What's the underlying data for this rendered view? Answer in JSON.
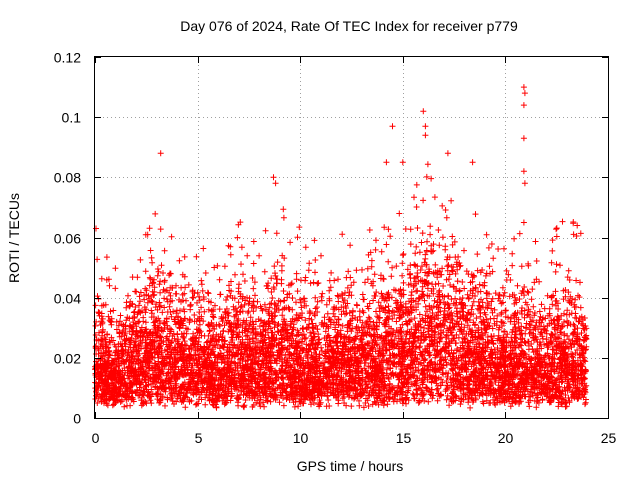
{
  "chart_data": {
    "type": "scatter",
    "title": "Day 076 of 2024, Rate Of TEC Index for receiver p779",
    "xlabel": "GPS time / hours",
    "ylabel": "ROTI / TECUs",
    "xlim": [
      0,
      25
    ],
    "ylim": [
      0,
      0.12
    ],
    "xticks": [
      0,
      5,
      10,
      15,
      20,
      25
    ],
    "xtick_labels": [
      "0",
      "5",
      "10",
      "15",
      "20",
      "25"
    ],
    "yticks": [
      0,
      0.02,
      0.04,
      0.06,
      0.08,
      0.1,
      0.12
    ],
    "ytick_labels": [
      "0",
      "0.02",
      "0.04",
      "0.06",
      "0.08",
      "0.1",
      "0.12"
    ],
    "grid": true,
    "marker": "+",
    "series": [
      {
        "name": "ROTI",
        "color": "#ff0000",
        "envelope_hours": [
          0,
          1,
          2,
          3,
          4,
          5,
          6,
          7,
          8,
          9,
          10,
          11,
          12,
          13,
          14,
          15,
          16,
          17,
          18,
          19,
          20,
          21,
          22,
          23,
          24
        ],
        "envelope_typical_max": [
          0.045,
          0.04,
          0.048,
          0.058,
          0.05,
          0.05,
          0.042,
          0.058,
          0.048,
          0.06,
          0.052,
          0.045,
          0.05,
          0.052,
          0.055,
          0.065,
          0.075,
          0.07,
          0.06,
          0.055,
          0.05,
          0.05,
          0.048,
          0.055,
          0.05
        ],
        "notable_points": [
          {
            "x": 0.05,
            "y": 0.063
          },
          {
            "x": 3.2,
            "y": 0.088
          },
          {
            "x": 8.7,
            "y": 0.08
          },
          {
            "x": 8.8,
            "y": 0.078
          },
          {
            "x": 14.5,
            "y": 0.097
          },
          {
            "x": 14.2,
            "y": 0.085
          },
          {
            "x": 15.0,
            "y": 0.085
          },
          {
            "x": 16.0,
            "y": 0.102
          },
          {
            "x": 16.1,
            "y": 0.097
          },
          {
            "x": 16.1,
            "y": 0.094
          },
          {
            "x": 17.2,
            "y": 0.088
          },
          {
            "x": 18.4,
            "y": 0.085
          },
          {
            "x": 20.9,
            "y": 0.11
          },
          {
            "x": 20.95,
            "y": 0.108
          },
          {
            "x": 20.9,
            "y": 0.104
          },
          {
            "x": 20.9,
            "y": 0.093
          },
          {
            "x": 20.9,
            "y": 0.082
          },
          {
            "x": 20.95,
            "y": 0.078
          },
          {
            "x": 20.9,
            "y": 0.065
          },
          {
            "x": 23.5,
            "y": 0.064
          }
        ]
      }
    ]
  }
}
